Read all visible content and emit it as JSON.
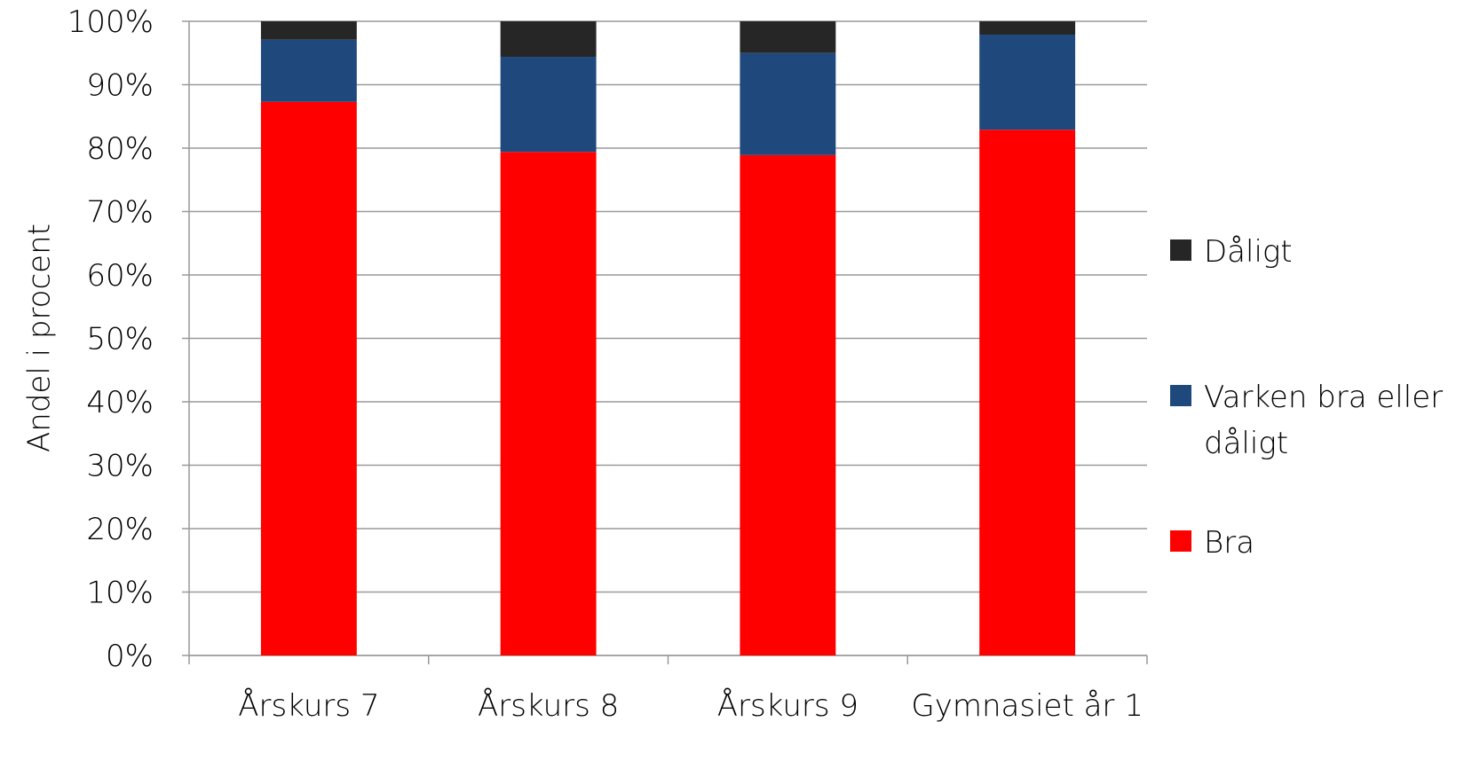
{
  "chart_data": {
    "type": "stacked_bar",
    "y_label": "Andel i procent",
    "categories": [
      "Årskurs 7",
      "Årskurs 8",
      "Årskurs 9",
      "Gymnasiet år 1"
    ],
    "series": [
      {
        "name": "Bra",
        "color": "#ff0000",
        "values": [
          87.3,
          79.4,
          78.9,
          82.9
        ]
      },
      {
        "name": "Varken bra eller dåligt",
        "color": "#1f497d",
        "values": [
          9.8,
          15.0,
          16.1,
          15.0
        ]
      },
      {
        "name": "Dåligt",
        "color": "#262626",
        "values": [
          2.9,
          5.6,
          5.0,
          2.1
        ]
      }
    ],
    "ylim": [
      0,
      100
    ],
    "yticks": [
      {
        "value": 0,
        "label": "0%"
      },
      {
        "value": 10,
        "label": "10%"
      },
      {
        "value": 20,
        "label": "20%"
      },
      {
        "value": 30,
        "label": "30%"
      },
      {
        "value": 40,
        "label": "40%"
      },
      {
        "value": 50,
        "label": "50%"
      },
      {
        "value": 60,
        "label": "60%"
      },
      {
        "value": 70,
        "label": "70%"
      },
      {
        "value": 80,
        "label": "80%"
      },
      {
        "value": 90,
        "label": "90%"
      },
      {
        "value": 100,
        "label": "100%"
      }
    ],
    "grid": true,
    "legend": "right"
  }
}
